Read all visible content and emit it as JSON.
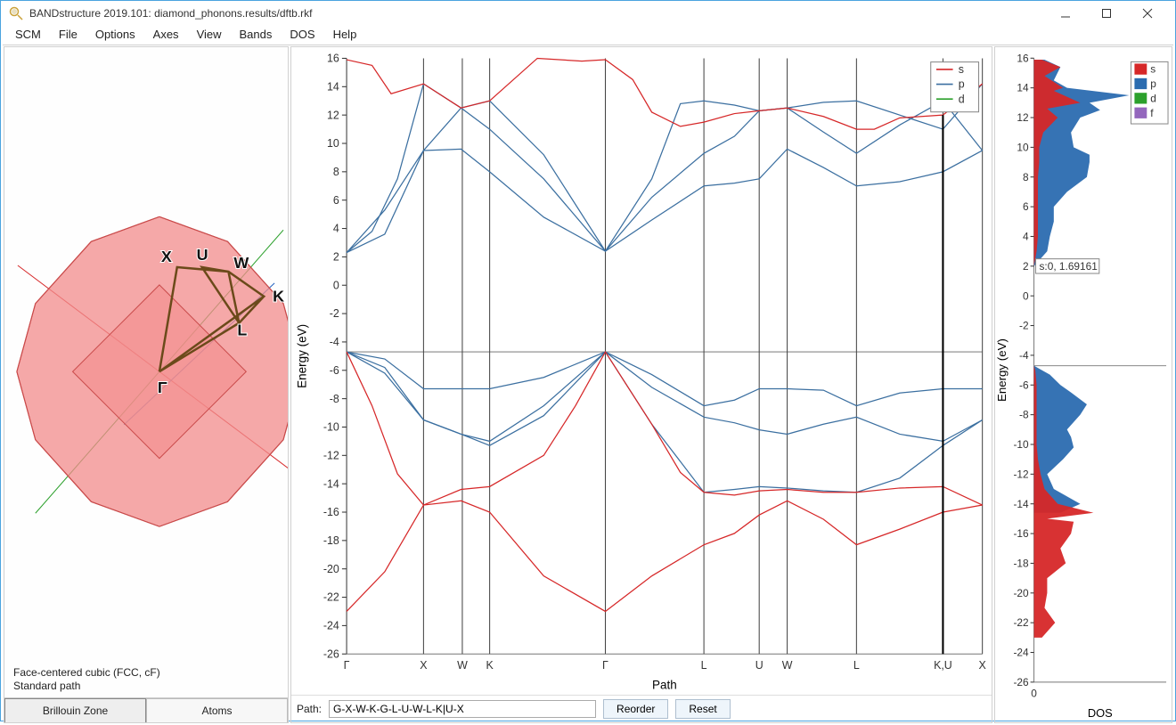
{
  "window": {
    "title": "BANDstructure 2019.101: diamond_phonons.results/dftb.rkf"
  },
  "menu": {
    "items": [
      "SCM",
      "File",
      "Options",
      "Axes",
      "View",
      "Bands",
      "DOS",
      "Help"
    ]
  },
  "brillouin": {
    "caption_line1": "Face-centered cubic (FCC, cF)",
    "caption_line2": "Standard path",
    "tabs": [
      "Brillouin Zone",
      "Atoms"
    ],
    "active_tab": 0,
    "point_labels": [
      "X",
      "U",
      "W",
      "K",
      "L",
      "Γ"
    ]
  },
  "band_plot": {
    "ylabel": "Energy (eV)",
    "xaxis_label": "Path",
    "ymin": -26,
    "ymax": 16,
    "ytick_step": 2,
    "fermi_energy": -4.7,
    "xticks": [
      {
        "pos": 0.0,
        "label": "Γ"
      },
      {
        "pos": 0.121,
        "label": "X"
      },
      {
        "pos": 0.182,
        "label": "W"
      },
      {
        "pos": 0.225,
        "label": "K"
      },
      {
        "pos": 0.407,
        "label": "Γ"
      },
      {
        "pos": 0.562,
        "label": "L"
      },
      {
        "pos": 0.649,
        "label": "U"
      },
      {
        "pos": 0.693,
        "label": "W"
      },
      {
        "pos": 0.802,
        "label": "L"
      },
      {
        "pos": 0.938,
        "label": "K,U"
      },
      {
        "pos": 1.0,
        "label": "X"
      }
    ],
    "cursor_x": 0.938,
    "legend": [
      {
        "label": "s",
        "color": "#d62728"
      },
      {
        "label": "p",
        "color": "#3b6fa0"
      },
      {
        "label": "d",
        "color": "#2ca02c"
      }
    ],
    "colors": {
      "s": "#d62728",
      "p": "#3b6fa0",
      "d": "#2ca02c"
    },
    "bands_p": [
      [
        [
          0,
          -4.7
        ],
        [
          0.06,
          -5.2
        ],
        [
          0.121,
          -7.3
        ],
        [
          0.18,
          -7.3
        ],
        [
          0.225,
          -7.3
        ],
        [
          0.31,
          -6.5
        ],
        [
          0.407,
          -4.7
        ],
        [
          0.48,
          -6.3
        ],
        [
          0.562,
          -8.5
        ],
        [
          0.61,
          -8.1
        ],
        [
          0.649,
          -7.3
        ],
        [
          0.693,
          -7.3
        ],
        [
          0.75,
          -7.4
        ],
        [
          0.802,
          -8.5
        ],
        [
          0.87,
          -7.6
        ],
        [
          0.938,
          -7.3
        ],
        [
          1,
          -7.3
        ]
      ],
      [
        [
          0,
          -4.7
        ],
        [
          0.06,
          -5.8
        ],
        [
          0.121,
          -9.5
        ],
        [
          0.18,
          -10.5
        ],
        [
          0.225,
          -11
        ],
        [
          0.31,
          -8.5
        ],
        [
          0.407,
          -4.7
        ],
        [
          0.48,
          -7.2
        ],
        [
          0.562,
          -9.3
        ],
        [
          0.61,
          -9.7
        ],
        [
          0.649,
          -10.2
        ],
        [
          0.693,
          -10.5
        ],
        [
          0.75,
          -9.8
        ],
        [
          0.802,
          -9.3
        ],
        [
          0.87,
          -10.5
        ],
        [
          0.938,
          -11
        ],
        [
          1,
          -9.5
        ]
      ],
      [
        [
          0,
          -4.7
        ],
        [
          0.06,
          -6.2
        ],
        [
          0.121,
          -9.5
        ],
        [
          0.18,
          -10.5
        ],
        [
          0.225,
          -11.3
        ],
        [
          0.31,
          -9.2
        ],
        [
          0.407,
          -4.7
        ],
        [
          0.48,
          -9.8
        ],
        [
          0.562,
          -14.6
        ],
        [
          0.61,
          -14.4
        ],
        [
          0.649,
          -14.2
        ],
        [
          0.693,
          -14.3
        ],
        [
          0.75,
          -14.5
        ],
        [
          0.802,
          -14.6
        ],
        [
          0.87,
          -13.6
        ],
        [
          0.938,
          -11.3
        ],
        [
          1,
          -9.5
        ]
      ],
      [
        [
          0,
          2.3
        ],
        [
          0.06,
          3.6
        ],
        [
          0.121,
          9.5
        ],
        [
          0.18,
          12.5
        ],
        [
          0.225,
          13.0
        ],
        [
          0.31,
          9.2
        ],
        [
          0.407,
          2.4
        ],
        [
          0.48,
          6.2
        ],
        [
          0.562,
          9.3
        ],
        [
          0.61,
          10.5
        ],
        [
          0.649,
          12.3
        ],
        [
          0.693,
          12.5
        ],
        [
          0.75,
          10.8
        ],
        [
          0.802,
          9.3
        ],
        [
          0.87,
          11.3
        ],
        [
          0.938,
          13.0
        ],
        [
          1,
          9.5
        ]
      ],
      [
        [
          0,
          2.3
        ],
        [
          0.06,
          5.3
        ],
        [
          0.121,
          9.5
        ],
        [
          0.18,
          9.6
        ],
        [
          0.225,
          8.0
        ],
        [
          0.31,
          4.8
        ],
        [
          0.407,
          2.4
        ],
        [
          0.48,
          4.6
        ],
        [
          0.562,
          7.0
        ],
        [
          0.61,
          7.2
        ],
        [
          0.649,
          7.5
        ],
        [
          0.693,
          9.6
        ],
        [
          0.75,
          8.3
        ],
        [
          0.802,
          7.0
        ],
        [
          0.87,
          7.3
        ],
        [
          0.938,
          8.0
        ],
        [
          1,
          9.5
        ]
      ],
      [
        [
          0,
          2.3
        ],
        [
          0.04,
          3.8
        ],
        [
          0.08,
          7.5
        ],
        [
          0.121,
          14.2
        ],
        [
          0.18,
          12.5
        ],
        [
          0.225,
          11.0
        ],
        [
          0.31,
          7.5
        ],
        [
          0.407,
          2.4
        ],
        [
          0.48,
          7.5
        ],
        [
          0.525,
          12.8
        ],
        [
          0.562,
          13.0
        ],
        [
          0.61,
          12.7
        ],
        [
          0.649,
          12.3
        ],
        [
          0.693,
          12.5
        ],
        [
          0.75,
          12.9
        ],
        [
          0.802,
          13.0
        ],
        [
          0.87,
          12.0
        ],
        [
          0.938,
          11.0
        ],
        [
          1,
          14.2
        ]
      ]
    ],
    "bands_s": [
      [
        [
          0,
          -23
        ],
        [
          0.06,
          -20.2
        ],
        [
          0.121,
          -15.5
        ],
        [
          0.18,
          -15.2
        ],
        [
          0.225,
          -16
        ],
        [
          0.31,
          -20.5
        ],
        [
          0.407,
          -23
        ],
        [
          0.48,
          -20.5
        ],
        [
          0.562,
          -18.3
        ],
        [
          0.61,
          -17.5
        ],
        [
          0.649,
          -16.2
        ],
        [
          0.693,
          -15.2
        ],
        [
          0.75,
          -16.5
        ],
        [
          0.802,
          -18.3
        ],
        [
          0.87,
          -17.2
        ],
        [
          0.938,
          -16
        ],
        [
          1,
          -15.5
        ]
      ],
      [
        [
          0,
          15.9
        ],
        [
          0.04,
          15.5
        ],
        [
          0.07,
          13.5
        ],
        [
          0.121,
          14.2
        ],
        [
          0.18,
          12.5
        ],
        [
          0.225,
          13.0
        ],
        [
          0.3,
          16.0
        ],
        [
          0.37,
          15.8
        ],
        [
          0.407,
          15.9
        ],
        [
          0.45,
          14.5
        ],
        [
          0.48,
          12.2
        ],
        [
          0.525,
          11.2
        ],
        [
          0.562,
          11.5
        ],
        [
          0.61,
          12.1
        ],
        [
          0.649,
          12.3
        ],
        [
          0.693,
          12.5
        ],
        [
          0.75,
          11.9
        ],
        [
          0.802,
          11.0
        ],
        [
          0.83,
          11.0
        ],
        [
          0.87,
          11.8
        ],
        [
          0.938,
          12.0
        ],
        [
          1,
          14.2
        ]
      ],
      [
        [
          0,
          -4.7
        ],
        [
          0.04,
          -8.5
        ],
        [
          0.08,
          -13.3
        ],
        [
          0.121,
          -15.5
        ],
        [
          0.18,
          -14.4
        ],
        [
          0.225,
          -14.2
        ],
        [
          0.31,
          -12
        ],
        [
          0.36,
          -8.5
        ],
        [
          0.407,
          -4.7
        ],
        [
          0.48,
          -9.8
        ],
        [
          0.525,
          -13.2
        ],
        [
          0.562,
          -14.6
        ],
        [
          0.61,
          -14.8
        ],
        [
          0.649,
          -14.5
        ],
        [
          0.693,
          -14.4
        ],
        [
          0.75,
          -14.6
        ],
        [
          0.802,
          -14.6
        ],
        [
          0.87,
          -14.3
        ],
        [
          0.938,
          -14.2
        ],
        [
          1,
          -15.5
        ]
      ]
    ]
  },
  "dos_plot": {
    "xaxis_label": "DOS",
    "ylabel": "Energy (eV)",
    "ymin": -26,
    "ymax": 16,
    "ytick_step": 2,
    "xmin": 0,
    "xmax": 1,
    "xticks": [
      0
    ],
    "tooltip": "s:0, 1.69161",
    "legend": [
      {
        "label": "s",
        "color": "#d62728"
      },
      {
        "label": "p",
        "color": "#2b6cb0"
      },
      {
        "label": "d",
        "color": "#2ca02c"
      },
      {
        "label": "f",
        "color": "#9467bd"
      }
    ],
    "dos_s": [
      [
        -23,
        0.06
      ],
      [
        -22,
        0.16
      ],
      [
        -21,
        0.08
      ],
      [
        -20,
        0.1
      ],
      [
        -19,
        0.1
      ],
      [
        -18,
        0.24
      ],
      [
        -17,
        0.2
      ],
      [
        -16,
        0.28
      ],
      [
        -15.2,
        0.3
      ],
      [
        -15,
        0.1
      ],
      [
        -14.6,
        0.45
      ],
      [
        -14,
        0.18
      ],
      [
        -13,
        0.08
      ],
      [
        -12,
        0.05
      ],
      [
        -11,
        0.03
      ],
      [
        -10,
        0.02
      ],
      [
        -9,
        0.02
      ],
      [
        -8,
        0.02
      ],
      [
        -7,
        0.02
      ],
      [
        -6,
        0.02
      ],
      [
        -5,
        0.01
      ],
      [
        -4.7,
        0.0
      ],
      [
        2,
        0.0
      ],
      [
        3,
        0.02
      ],
      [
        4,
        0.03
      ],
      [
        5,
        0.03
      ],
      [
        6,
        0.03
      ],
      [
        7,
        0.03
      ],
      [
        8,
        0.03
      ],
      [
        9,
        0.04
      ],
      [
        10,
        0.04
      ],
      [
        11,
        0.07
      ],
      [
        12,
        0.18
      ],
      [
        12.6,
        0.1
      ],
      [
        13,
        0.35
      ],
      [
        13.8,
        0.15
      ],
      [
        14,
        0.22
      ],
      [
        14.8,
        0.08
      ],
      [
        15.4,
        0.2
      ],
      [
        15.9,
        0.06
      ]
    ],
    "dos_p": [
      [
        -14.6,
        0.2
      ],
      [
        -14,
        0.35
      ],
      [
        -13,
        0.15
      ],
      [
        -12,
        0.1
      ],
      [
        -11,
        0.22
      ],
      [
        -10.2,
        0.3
      ],
      [
        -9.5,
        0.28
      ],
      [
        -9,
        0.25
      ],
      [
        -8,
        0.35
      ],
      [
        -7.3,
        0.4
      ],
      [
        -6.5,
        0.28
      ],
      [
        -6,
        0.2
      ],
      [
        -5.3,
        0.12
      ],
      [
        -4.7,
        0.0
      ],
      [
        2,
        0.0
      ],
      [
        3,
        0.1
      ],
      [
        4,
        0.12
      ],
      [
        5,
        0.15
      ],
      [
        6,
        0.15
      ],
      [
        7,
        0.25
      ],
      [
        8,
        0.4
      ],
      [
        9,
        0.42
      ],
      [
        9.5,
        0.42
      ],
      [
        10,
        0.3
      ],
      [
        11,
        0.28
      ],
      [
        12,
        0.35
      ],
      [
        12.5,
        0.5
      ],
      [
        13,
        0.42
      ],
      [
        13.5,
        0.72
      ],
      [
        14,
        0.25
      ],
      [
        14.5,
        0.15
      ],
      [
        15.4,
        0.2
      ],
      [
        15.9,
        0.08
      ]
    ]
  },
  "pathbar": {
    "label": "Path:",
    "value": "G-X-W-K-G-L-U-W-L-K|U-X",
    "reorder": "Reorder",
    "reset": "Reset"
  }
}
